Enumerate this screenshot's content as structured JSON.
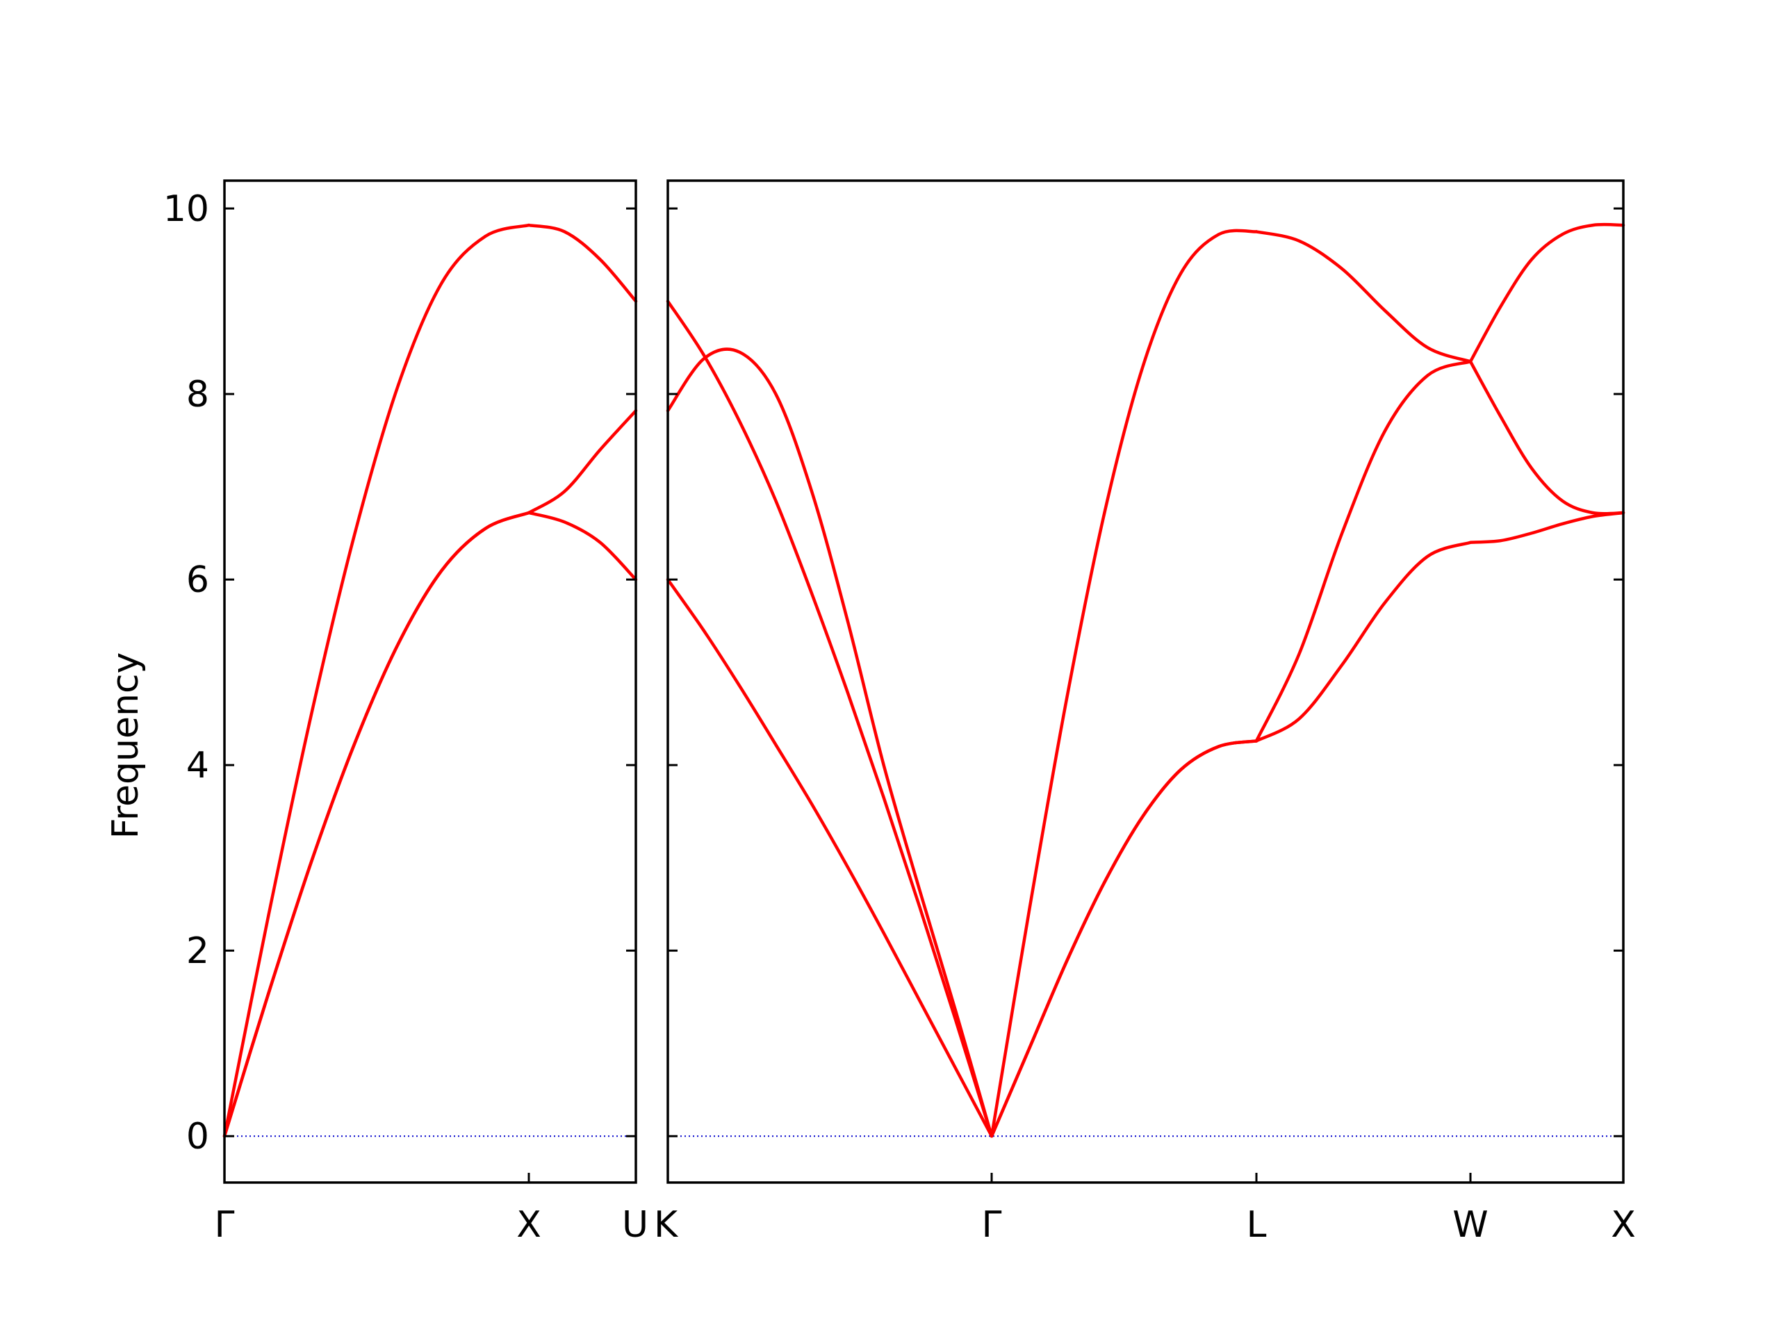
{
  "chart_data": {
    "type": "line",
    "title": "",
    "xlabel": "",
    "ylabel": "Frequency",
    "ylim": [
      -0.5,
      10.3
    ],
    "yticks": [
      0,
      2,
      4,
      6,
      8,
      10
    ],
    "grid": false,
    "legend": "none",
    "colors": {
      "bands": "#ff0000",
      "zero_line": "#0000cc",
      "frame": "#000000"
    },
    "panels": [
      {
        "path": [
          "Γ",
          "X",
          "U"
        ],
        "segments": [
          {
            "from": "Γ",
            "to": "X",
            "bands": [
              [
                0,
                1.52,
                2.96,
                4.24,
                5.31,
                6.1,
                6.55,
                6.72
              ],
              [
                0,
                1.52,
                2.96,
                4.24,
                5.31,
                6.1,
                6.55,
                6.72
              ],
              [
                0,
                2.35,
                4.55,
                6.5,
                8.1,
                9.2,
                9.7,
                9.82
              ]
            ]
          },
          {
            "from": "X",
            "to": "U",
            "bands": [
              [
                6.72,
                6.62,
                6.4,
                6.0
              ],
              [
                6.72,
                6.95,
                7.4,
                7.82
              ],
              [
                9.82,
                9.75,
                9.45,
                9.0
              ]
            ]
          }
        ]
      },
      {
        "path": [
          "K",
          "Γ",
          "L",
          "W",
          "X"
        ],
        "segments": [
          {
            "from": "K",
            "to": "Γ",
            "bands": [
              [
                6.0,
                5.45,
                4.85,
                4.22,
                3.58,
                2.9,
                2.19,
                1.46,
                0.73,
                0
              ],
              [
                9.0,
                8.42,
                7.7,
                6.85,
                5.85,
                4.78,
                3.65,
                2.47,
                1.25,
                0
              ],
              [
                7.82,
                8.38,
                8.45,
                8.0,
                6.95,
                5.55,
                4.0,
                2.65,
                1.35,
                0
              ]
            ]
          },
          {
            "from": "Γ",
            "to": "L",
            "bands": [
              [
                0,
                0.95,
                1.9,
                2.75,
                3.45,
                3.95,
                4.2,
                4.26
              ],
              [
                0,
                0.95,
                1.9,
                2.75,
                3.45,
                3.95,
                4.2,
                4.26
              ],
              [
                0,
                2.45,
                4.75,
                6.75,
                8.3,
                9.3,
                9.72,
                9.75
              ]
            ]
          },
          {
            "from": "L",
            "to": "W",
            "bands": [
              [
                4.26,
                4.5,
                5.08,
                5.75,
                6.25,
                6.4
              ],
              [
                4.26,
                5.2,
                6.5,
                7.6,
                8.2,
                8.35
              ],
              [
                9.75,
                9.65,
                9.35,
                8.9,
                8.5,
                8.35
              ]
            ]
          },
          {
            "from": "W",
            "to": "X",
            "bands": [
              [
                6.4,
                6.42,
                6.5,
                6.6,
                6.68,
                6.72
              ],
              [
                8.35,
                7.75,
                7.2,
                6.85,
                6.72,
                6.72
              ],
              [
                8.35,
                8.95,
                9.45,
                9.72,
                9.82,
                9.82
              ]
            ]
          }
        ]
      }
    ]
  }
}
